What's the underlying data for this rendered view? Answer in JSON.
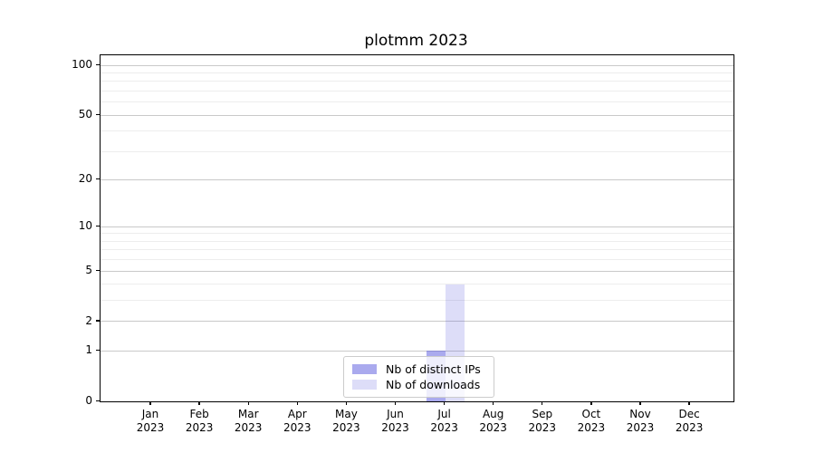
{
  "chart_data": {
    "type": "bar",
    "title": "plotmm 2023",
    "categories": [
      "Jan 2023",
      "Feb 2023",
      "Mar 2023",
      "Apr 2023",
      "May 2023",
      "Jun 2023",
      "Jul 2023",
      "Aug 2023",
      "Sep 2023",
      "Oct 2023",
      "Nov 2023",
      "Dec 2023"
    ],
    "series": [
      {
        "name": "Nb of distinct IPs",
        "color": "rgba(85,85,221,0.5)",
        "color_hex_on_white": "#aaaaee",
        "values": [
          0,
          0,
          0,
          0,
          0,
          0,
          1,
          0,
          0,
          0,
          0,
          0
        ]
      },
      {
        "name": "Nb of downloads",
        "color": "rgba(85,85,221,0.2)",
        "color_hex_on_white": "#ddddf8",
        "values": [
          0,
          0,
          0,
          0,
          0,
          0,
          4,
          0,
          0,
          0,
          0,
          0
        ]
      }
    ],
    "xlabel": "",
    "ylabel": "",
    "y_axis": {
      "scale": "log1p",
      "major_ticks": [
        0,
        1,
        2,
        5,
        10,
        20,
        50,
        100
      ],
      "minor_ticks": [
        3,
        4,
        6,
        7,
        8,
        9,
        30,
        40,
        60,
        70,
        80,
        90
      ],
      "ylim": [
        0,
        115
      ]
    },
    "grid": "horizontal-major-and-minor",
    "legend": {
      "position": "lower-center",
      "entries": [
        "Nb of distinct IPs",
        "Nb of downloads"
      ]
    },
    "colors": {
      "major_grid": "#c9c9c9",
      "minor_grid": "#ededed",
      "spine": "#000000",
      "legend_border": "#cccccc"
    }
  }
}
